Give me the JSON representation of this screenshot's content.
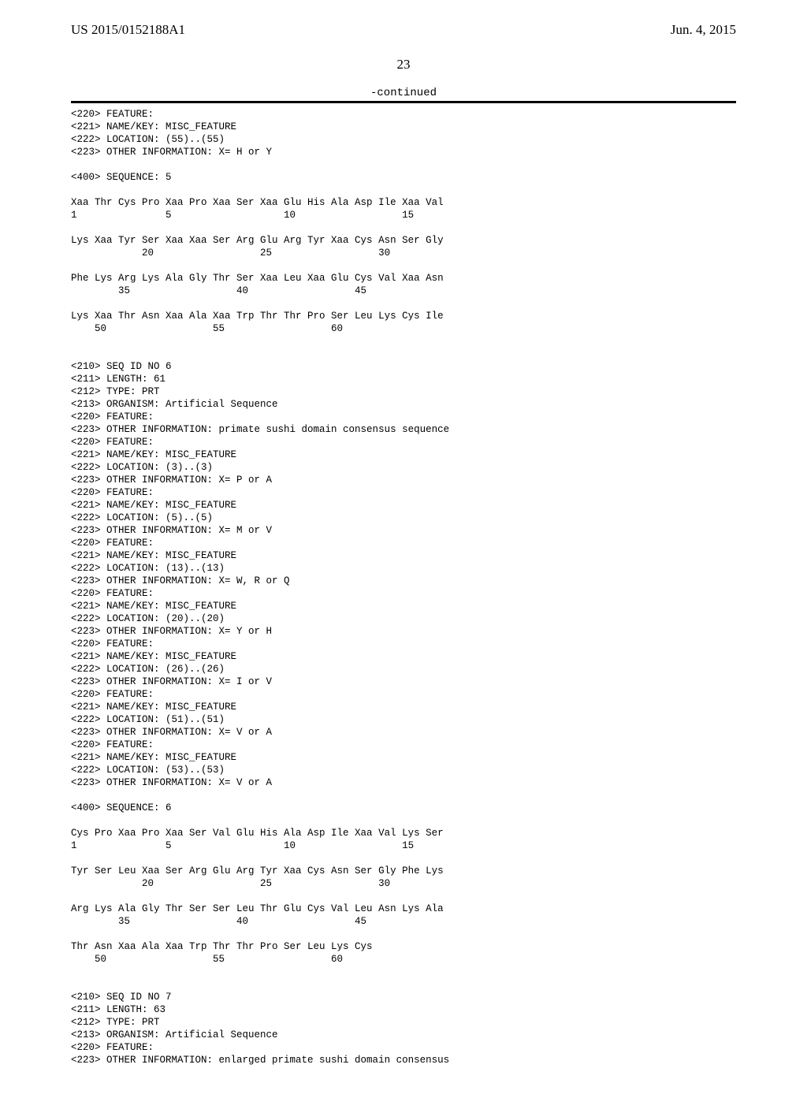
{
  "header": {
    "pub_number": "US 2015/0152188A1",
    "pub_date": "Jun. 4, 2015"
  },
  "page_number": "23",
  "continued": "-continued",
  "listing": "<220> FEATURE:\n<221> NAME/KEY: MISC_FEATURE\n<222> LOCATION: (55)..(55)\n<223> OTHER INFORMATION: X= H or Y\n\n<400> SEQUENCE: 5\n\nXaa Thr Cys Pro Xaa Pro Xaa Ser Xaa Glu His Ala Asp Ile Xaa Val\n1               5                   10                  15\n\nLys Xaa Tyr Ser Xaa Xaa Ser Arg Glu Arg Tyr Xaa Cys Asn Ser Gly\n            20                  25                  30\n\nPhe Lys Arg Lys Ala Gly Thr Ser Xaa Leu Xaa Glu Cys Val Xaa Asn\n        35                  40                  45\n\nLys Xaa Thr Asn Xaa Ala Xaa Trp Thr Thr Pro Ser Leu Lys Cys Ile\n    50                  55                  60\n\n\n<210> SEQ ID NO 6\n<211> LENGTH: 61\n<212> TYPE: PRT\n<213> ORGANISM: Artificial Sequence\n<220> FEATURE:\n<223> OTHER INFORMATION: primate sushi domain consensus sequence\n<220> FEATURE:\n<221> NAME/KEY: MISC_FEATURE\n<222> LOCATION: (3)..(3)\n<223> OTHER INFORMATION: X= P or A\n<220> FEATURE:\n<221> NAME/KEY: MISC_FEATURE\n<222> LOCATION: (5)..(5)\n<223> OTHER INFORMATION: X= M or V\n<220> FEATURE:\n<221> NAME/KEY: MISC_FEATURE\n<222> LOCATION: (13)..(13)\n<223> OTHER INFORMATION: X= W, R or Q\n<220> FEATURE:\n<221> NAME/KEY: MISC_FEATURE\n<222> LOCATION: (20)..(20)\n<223> OTHER INFORMATION: X= Y or H\n<220> FEATURE:\n<221> NAME/KEY: MISC_FEATURE\n<222> LOCATION: (26)..(26)\n<223> OTHER INFORMATION: X= I or V\n<220> FEATURE:\n<221> NAME/KEY: MISC_FEATURE\n<222> LOCATION: (51)..(51)\n<223> OTHER INFORMATION: X= V or A\n<220> FEATURE:\n<221> NAME/KEY: MISC_FEATURE\n<222> LOCATION: (53)..(53)\n<223> OTHER INFORMATION: X= V or A\n\n<400> SEQUENCE: 6\n\nCys Pro Xaa Pro Xaa Ser Val Glu His Ala Asp Ile Xaa Val Lys Ser\n1               5                   10                  15\n\nTyr Ser Leu Xaa Ser Arg Glu Arg Tyr Xaa Cys Asn Ser Gly Phe Lys\n            20                  25                  30\n\nArg Lys Ala Gly Thr Ser Ser Leu Thr Glu Cys Val Leu Asn Lys Ala\n        35                  40                  45\n\nThr Asn Xaa Ala Xaa Trp Thr Thr Pro Ser Leu Lys Cys\n    50                  55                  60\n\n\n<210> SEQ ID NO 7\n<211> LENGTH: 63\n<212> TYPE: PRT\n<213> ORGANISM: Artificial Sequence\n<220> FEATURE:\n<223> OTHER INFORMATION: enlarged primate sushi domain consensus"
}
